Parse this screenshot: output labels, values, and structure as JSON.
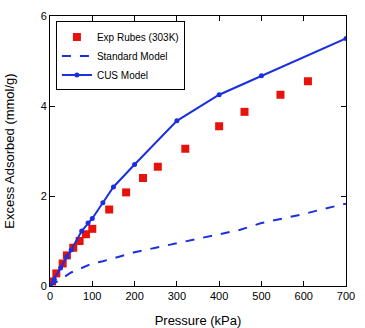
{
  "chart_data": {
    "type": "scatter",
    "x_label": "Pressure (kPa)",
    "y_label": "Excess Adsorbed (mmol/g)",
    "xlim": [
      0,
      700
    ],
    "xticks": [
      0,
      100,
      200,
      300,
      400,
      500,
      600,
      700
    ],
    "ylim": [
      0,
      6
    ],
    "yticks": [
      0,
      2,
      4,
      6
    ],
    "grid": false,
    "legend": "upper left",
    "series": [
      {
        "name": "Exp Rubes (303K)",
        "type": "scatter",
        "marker": "square",
        "color": "#e8120c",
        "x": [
          5,
          15,
          30,
          40,
          55,
          70,
          85,
          100,
          140,
          180,
          220,
          255,
          320,
          400,
          460,
          545,
          610
        ],
        "values": [
          0.1,
          0.28,
          0.5,
          0.68,
          0.85,
          1.0,
          1.15,
          1.27,
          1.7,
          2.08,
          2.4,
          2.65,
          3.05,
          3.55,
          3.87,
          4.25,
          4.55
        ]
      },
      {
        "name": "Standard Model",
        "type": "line",
        "line_style": "dashed",
        "color": "#1a2fe0",
        "x": [
          0,
          25,
          50,
          75,
          100,
          125,
          150,
          175,
          200,
          250,
          300,
          350,
          400,
          450,
          500,
          550,
          600,
          650,
          700
        ],
        "values": [
          0,
          0.15,
          0.3,
          0.4,
          0.5,
          0.55,
          0.62,
          0.68,
          0.75,
          0.85,
          0.95,
          1.05,
          1.15,
          1.25,
          1.4,
          1.5,
          1.6,
          1.72,
          1.83
        ]
      },
      {
        "name": "CUS Model",
        "type": "line",
        "marker": "circle",
        "line_style": "solid",
        "color": "#1a2fe0",
        "x": [
          0,
          10,
          25,
          40,
          50,
          75,
          90,
          100,
          125,
          150,
          200,
          300,
          400,
          500,
          700
        ],
        "values": [
          0,
          0.15,
          0.4,
          0.65,
          0.8,
          1.22,
          1.4,
          1.5,
          1.85,
          2.2,
          2.7,
          3.67,
          4.25,
          4.67,
          5.5
        ]
      }
    ]
  }
}
